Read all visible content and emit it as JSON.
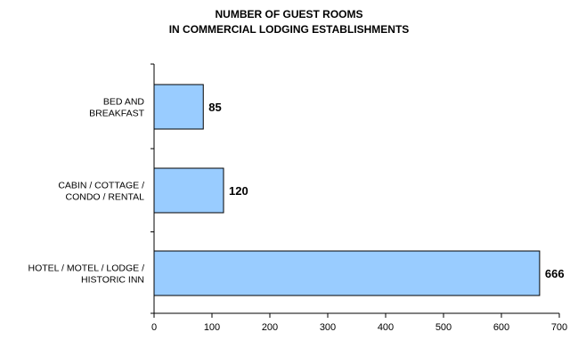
{
  "chart_data": {
    "type": "bar",
    "orientation": "horizontal",
    "title_lines": [
      "NUMBER OF GUEST ROOMS",
      "IN COMMERCIAL LODGING ESTABLISHMENTS"
    ],
    "categories": [
      [
        "BED AND",
        "BREAKFAST"
      ],
      [
        "CABIN / COTTAGE /",
        "CONDO / RENTAL"
      ],
      [
        "HOTEL / MOTEL / LODGE /",
        "HISTORIC INN"
      ]
    ],
    "values": [
      85,
      120,
      666
    ],
    "data_labels": [
      "85",
      "120",
      "666"
    ],
    "xlim": [
      0,
      700
    ],
    "x_ticks": [
      0,
      100,
      200,
      300,
      400,
      500,
      600,
      700
    ],
    "x_tick_labels": [
      "0",
      "100",
      "200",
      "300",
      "400",
      "500",
      "600",
      "700"
    ],
    "bar_color": "#99ccff",
    "bar_edge_color": "#000000",
    "grid": false,
    "legend": "none"
  }
}
